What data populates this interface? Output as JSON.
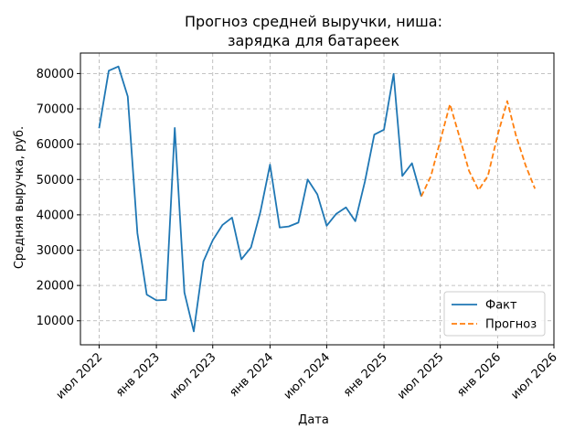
{
  "chart_data": {
    "type": "line",
    "title_line1": "Прогноз средней выручки, ниша:",
    "title_line2": "зарядка для батареек",
    "xlabel": "Дата",
    "ylabel": "Средняя выручка, руб.",
    "xlim": [
      "2022-05-02",
      "2026-07-01"
    ],
    "ylim": [
      3200,
      85800
    ],
    "grid": true,
    "legend_position": "bottom-right",
    "x_ticks": [
      {
        "date": "2022-07-01",
        "label": "июл 2022"
      },
      {
        "date": "2023-01-01",
        "label": "янв 2023"
      },
      {
        "date": "2023-07-01",
        "label": "июл 2023"
      },
      {
        "date": "2024-01-01",
        "label": "янв 2024"
      },
      {
        "date": "2024-07-01",
        "label": "июл 2024"
      },
      {
        "date": "2025-01-01",
        "label": "янв 2025"
      },
      {
        "date": "2025-07-01",
        "label": "июл 2025"
      },
      {
        "date": "2026-01-01",
        "label": "янв 2026"
      },
      {
        "date": "2026-07-01",
        "label": "июл 2026"
      }
    ],
    "y_ticks": [
      {
        "value": 10000,
        "label": "10000"
      },
      {
        "value": 20000,
        "label": "20000"
      },
      {
        "value": 30000,
        "label": "30000"
      },
      {
        "value": 40000,
        "label": "40000"
      },
      {
        "value": 50000,
        "label": "50000"
      },
      {
        "value": 60000,
        "label": "60000"
      },
      {
        "value": 70000,
        "label": "70000"
      },
      {
        "value": 80000,
        "label": "80000"
      }
    ],
    "series": [
      {
        "name": "Факт",
        "color": "#1f77b4",
        "style": "solid",
        "points": [
          {
            "x": "2022-07-01",
            "y": 64500
          },
          {
            "x": "2022-08-01",
            "y": 80800
          },
          {
            "x": "2022-09-01",
            "y": 82000
          },
          {
            "x": "2022-10-01",
            "y": 73500
          },
          {
            "x": "2022-11-01",
            "y": 34800
          },
          {
            "x": "2022-12-01",
            "y": 17400
          },
          {
            "x": "2023-01-01",
            "y": 15800
          },
          {
            "x": "2023-02-01",
            "y": 15900
          },
          {
            "x": "2023-03-01",
            "y": 64600
          },
          {
            "x": "2023-04-01",
            "y": 18000
          },
          {
            "x": "2023-05-01",
            "y": 7000
          },
          {
            "x": "2023-06-01",
            "y": 26800
          },
          {
            "x": "2023-07-01",
            "y": 32800
          },
          {
            "x": "2023-08-01",
            "y": 37100
          },
          {
            "x": "2023-09-01",
            "y": 39200
          },
          {
            "x": "2023-10-01",
            "y": 27400
          },
          {
            "x": "2023-11-01",
            "y": 30800
          },
          {
            "x": "2023-12-01",
            "y": 40800
          },
          {
            "x": "2024-01-01",
            "y": 54200
          },
          {
            "x": "2024-02-01",
            "y": 36400
          },
          {
            "x": "2024-03-01",
            "y": 36700
          },
          {
            "x": "2024-04-01",
            "y": 37800
          },
          {
            "x": "2024-05-01",
            "y": 50000
          },
          {
            "x": "2024-06-01",
            "y": 45800
          },
          {
            "x": "2024-07-01",
            "y": 36900
          },
          {
            "x": "2024-08-01",
            "y": 40300
          },
          {
            "x": "2024-09-01",
            "y": 42100
          },
          {
            "x": "2024-10-01",
            "y": 38200
          },
          {
            "x": "2024-11-01",
            "y": 49500
          },
          {
            "x": "2024-12-01",
            "y": 62700
          },
          {
            "x": "2025-01-01",
            "y": 64100
          },
          {
            "x": "2025-02-01",
            "y": 79900
          },
          {
            "x": "2025-03-01",
            "y": 51000
          },
          {
            "x": "2025-04-01",
            "y": 54600
          },
          {
            "x": "2025-05-01",
            "y": 45200
          }
        ]
      },
      {
        "name": "Прогноз",
        "color": "#ff7f0e",
        "style": "dashed",
        "points": [
          {
            "x": "2025-05-01",
            "y": 45200
          },
          {
            "x": "2025-06-01",
            "y": 51000
          },
          {
            "x": "2025-07-01",
            "y": 61000
          },
          {
            "x": "2025-08-01",
            "y": 71300
          },
          {
            "x": "2025-09-01",
            "y": 62000
          },
          {
            "x": "2025-10-01",
            "y": 52500
          },
          {
            "x": "2025-11-01",
            "y": 47000
          },
          {
            "x": "2025-12-01",
            "y": 51000
          },
          {
            "x": "2026-01-01",
            "y": 62500
          },
          {
            "x": "2026-02-01",
            "y": 72200
          },
          {
            "x": "2026-03-01",
            "y": 62500
          },
          {
            "x": "2026-04-01",
            "y": 54000
          },
          {
            "x": "2026-05-01",
            "y": 47400
          }
        ]
      }
    ]
  }
}
